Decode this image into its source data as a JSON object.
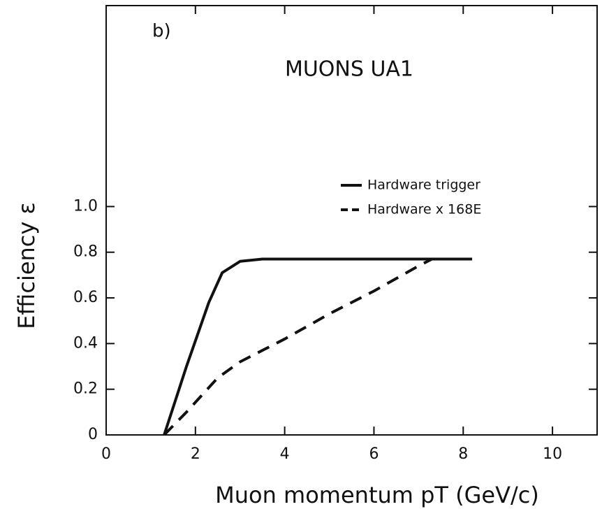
{
  "chart_data": {
    "type": "line",
    "title": "MUONS UA1",
    "annotation": "b)",
    "x_label": "Muon momentum pT (GeV/c)",
    "y_label": "Efficiency ε",
    "xlim": [
      0,
      11
    ],
    "ylim": [
      0,
      1.88
    ],
    "xticks": [
      0,
      2,
      4,
      6,
      8,
      10
    ],
    "yticks": [
      0,
      {
        "value": 0.2,
        "label": "0.2"
      },
      {
        "value": 0.4,
        "label": "0.4"
      },
      {
        "value": 0.6,
        "label": "0.6"
      },
      {
        "value": 0.8,
        "label": "0.8"
      },
      {
        "value": 1,
        "label": "1.0"
      }
    ],
    "grid": false,
    "legend": "upper right",
    "series": [
      {
        "name": "Hardware trigger",
        "color": "#111111",
        "dash": false,
        "x": [
          1.3,
          1.8,
          2.3,
          2.6,
          3.0,
          3.5,
          8.2
        ],
        "values": [
          0,
          0.3,
          0.58,
          0.71,
          0.76,
          0.77,
          0.77
        ]
      },
      {
        "name": "Hardware x 168E",
        "color": "#111111",
        "dash": true,
        "x": [
          1.3,
          1.8,
          2.5,
          3.0,
          4.0,
          5.0,
          6.0,
          7.0,
          7.3
        ],
        "values": [
          0,
          0.1,
          0.25,
          0.32,
          0.42,
          0.53,
          0.63,
          0.74,
          0.77
        ]
      }
    ]
  }
}
